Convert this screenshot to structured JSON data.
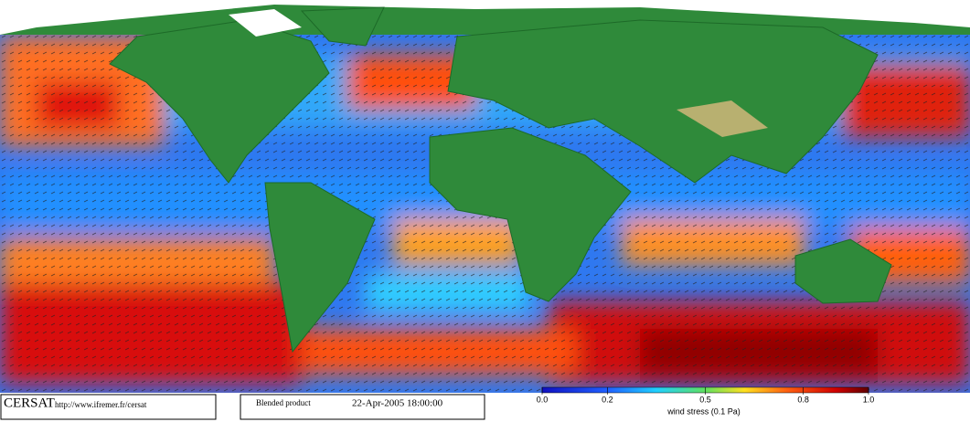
{
  "footer": {
    "logo": "CERSAT",
    "url": "http://www.ifremer.fr/cersat",
    "product": "Blended product",
    "date": "22-Apr-2005 18:00:00"
  },
  "colorbar": {
    "label": "wind stress (0.1 Pa)",
    "range": [
      0,
      1
    ],
    "ticks": [
      {
        "value": 0,
        "label": "0.0"
      },
      0.2,
      0.5,
      0.8,
      {
        "value": 1,
        "label": "1.0"
      }
    ]
  }
}
